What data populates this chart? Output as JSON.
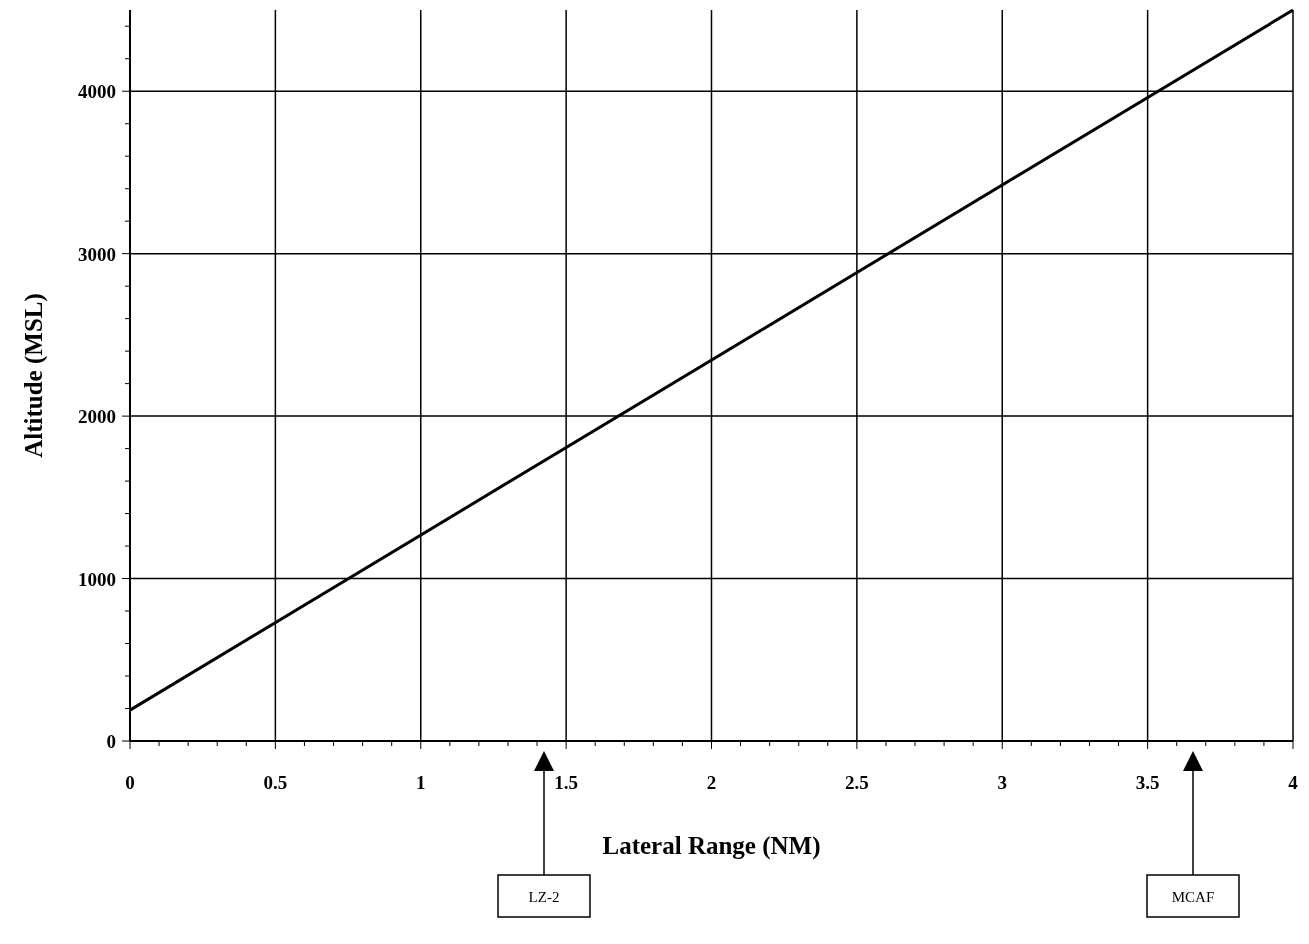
{
  "chart_data": {
    "type": "line",
    "xlabel": "Lateral Range (NM)",
    "ylabel": "Altitude (MSL)",
    "x": [
      0,
      4
    ],
    "series": [
      {
        "color": "#000000",
        "values": [
          190,
          4500
        ]
      }
    ],
    "xlim": [
      0,
      4
    ],
    "ylim": [
      0,
      4500
    ],
    "xticks": [
      0,
      {
        "value": 0.1,
        "label": null
      },
      {
        "value": 0.2,
        "label": null
      },
      {
        "value": 0.3,
        "label": null
      },
      {
        "value": 0.4,
        "label": null
      },
      0.5,
      {
        "value": 0.6,
        "label": null
      },
      {
        "value": 0.7,
        "label": null
      },
      {
        "value": 0.8,
        "label": null
      },
      {
        "value": 0.9,
        "label": null
      },
      1,
      {
        "value": 1.1,
        "label": null
      },
      {
        "value": 1.2,
        "label": null
      },
      {
        "value": 1.3,
        "label": null
      },
      {
        "value": 1.4,
        "label": null
      },
      1.5,
      {
        "value": 1.6,
        "label": null
      },
      {
        "value": 1.7,
        "label": null
      },
      {
        "value": 1.8,
        "label": null
      },
      {
        "value": 1.9,
        "label": null
      },
      2,
      {
        "value": 2.1,
        "label": null
      },
      {
        "value": 2.2,
        "label": null
      },
      {
        "value": 2.3,
        "label": null
      },
      {
        "value": 2.4,
        "label": null
      },
      2.5,
      {
        "value": 2.6,
        "label": null
      },
      {
        "value": 2.7,
        "label": null
      },
      {
        "value": 2.8,
        "label": null
      },
      {
        "value": 2.9,
        "label": null
      },
      3,
      {
        "value": 3.1,
        "label": null
      },
      {
        "value": 3.2,
        "label": null
      },
      {
        "value": 3.3,
        "label": null
      },
      {
        "value": 3.4,
        "label": null
      },
      3.5,
      {
        "value": 3.6,
        "label": null
      },
      {
        "value": 3.7,
        "label": null
      },
      {
        "value": 3.8,
        "label": null
      },
      {
        "value": 3.9,
        "label": null
      },
      4
    ],
    "yticks": [
      0,
      {
        "value": 200,
        "label": null
      },
      {
        "value": 400,
        "label": null
      },
      {
        "value": 600,
        "label": null
      },
      {
        "value": 800,
        "label": null
      },
      1000,
      {
        "value": 1200,
        "label": null
      },
      {
        "value": 1400,
        "label": null
      },
      {
        "value": 1600,
        "label": null
      },
      {
        "value": 1800,
        "label": null
      },
      2000,
      {
        "value": 2200,
        "label": null
      },
      {
        "value": 2400,
        "label": null
      },
      {
        "value": 2600,
        "label": null
      },
      {
        "value": 2800,
        "label": null
      },
      3000,
      {
        "value": 3200,
        "label": null
      },
      {
        "value": 3400,
        "label": null
      },
      {
        "value": 3600,
        "label": null
      },
      {
        "value": 3800,
        "label": null
      },
      4000,
      {
        "value": 4200,
        "label": null
      },
      {
        "value": 4400,
        "label": null
      }
    ],
    "grid": true,
    "marker": "none",
    "line_style": "solid",
    "annotations": [
      "LZ-2",
      "MCAF"
    ]
  }
}
